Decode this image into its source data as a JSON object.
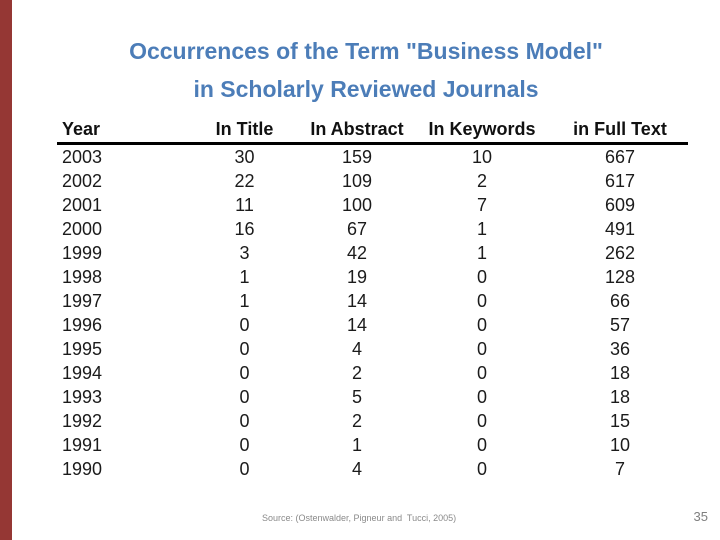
{
  "slide": {
    "accent_bar_color": "#953734",
    "background_color": "#ffffff"
  },
  "title": {
    "line1": "Occurrences of the Term \"Business Model\"",
    "line2": "in Scholarly Reviewed Journals",
    "color": "#4C7DB8"
  },
  "table": {
    "headers": [
      "Year",
      "In Title",
      "In Abstract",
      "In Keywords",
      "in Full Text"
    ],
    "rows": [
      [
        "2003",
        "30",
        "159",
        "10",
        "667"
      ],
      [
        "2002",
        "22",
        "109",
        "2",
        "617"
      ],
      [
        "2001",
        "11",
        "100",
        "7",
        "609"
      ],
      [
        "2000",
        "16",
        "67",
        "1",
        "491"
      ],
      [
        "1999",
        "3",
        "42",
        "1",
        "262"
      ],
      [
        "1998",
        "1",
        "19",
        "0",
        "128"
      ],
      [
        "1997",
        "1",
        "14",
        "0",
        "66"
      ],
      [
        "1996",
        "0",
        "14",
        "0",
        "57"
      ],
      [
        "1995",
        "0",
        "4",
        "0",
        "36"
      ],
      [
        "1994",
        "0",
        "2",
        "0",
        "18"
      ],
      [
        "1993",
        "0",
        "5",
        "0",
        "18"
      ],
      [
        "1992",
        "0",
        "2",
        "0",
        "15"
      ],
      [
        "1991",
        "0",
        "1",
        "0",
        "10"
      ],
      [
        "1990",
        "0",
        "4",
        "0",
        "7"
      ]
    ]
  },
  "chart_data": {
    "type": "table",
    "title": "Occurrences of the Term \"Business Model\" in Scholarly Reviewed Journals",
    "columns": [
      "Year",
      "In Title",
      "In Abstract",
      "In Keywords",
      "in Full Text"
    ],
    "rows": [
      [
        2003,
        30,
        159,
        10,
        667
      ],
      [
        2002,
        22,
        109,
        2,
        617
      ],
      [
        2001,
        11,
        100,
        7,
        609
      ],
      [
        2000,
        16,
        67,
        1,
        491
      ],
      [
        1999,
        3,
        42,
        1,
        262
      ],
      [
        1998,
        1,
        19,
        0,
        128
      ],
      [
        1997,
        1,
        14,
        0,
        66
      ],
      [
        1996,
        0,
        14,
        0,
        57
      ],
      [
        1995,
        0,
        4,
        0,
        36
      ],
      [
        1994,
        0,
        2,
        0,
        18
      ],
      [
        1993,
        0,
        5,
        0,
        18
      ],
      [
        1992,
        0,
        2,
        0,
        15
      ],
      [
        1991,
        0,
        1,
        0,
        10
      ],
      [
        1990,
        0,
        4,
        0,
        7
      ]
    ]
  },
  "footer": {
    "source": "Source: (Ostenwalder, Pigneur and  Tucci, 2005)",
    "page_number": "35"
  }
}
